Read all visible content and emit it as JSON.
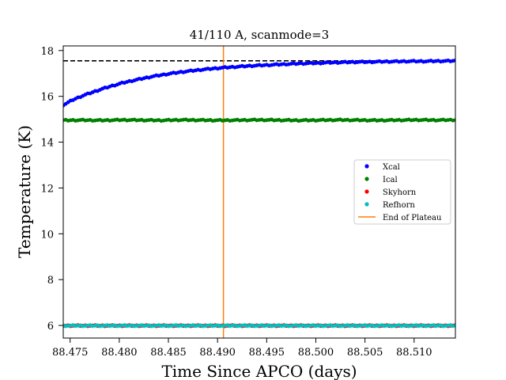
{
  "chart_data": {
    "type": "scatter",
    "title": "41/110 A, scanmode=3",
    "xlabel": "Time Since APCO (days)",
    "ylabel": "Temperature (K)",
    "xlim": [
      88.4743,
      88.5142
    ],
    "ylim": [
      5.45,
      18.2
    ],
    "x_ticks": [
      88.475,
      88.48,
      88.485,
      88.49,
      88.495,
      88.5,
      88.505,
      88.51
    ],
    "x_tick_labels": [
      "88.475",
      "88.480",
      "88.485",
      "88.490",
      "88.495",
      "88.500",
      "88.505",
      "88.510"
    ],
    "y_ticks": [
      6,
      8,
      10,
      12,
      14,
      16,
      18
    ],
    "y_tick_labels": [
      "6",
      "8",
      "10",
      "12",
      "14",
      "16",
      "18"
    ],
    "grid": false,
    "legend_position": "center-right",
    "series": [
      {
        "name": "Xcal",
        "color": "#0000ff",
        "marker": "dot",
        "x": [
          88.4743,
          88.4753,
          88.4763,
          88.4773,
          88.4783,
          88.4793,
          88.4803,
          88.4813,
          88.4823,
          88.4833,
          88.4843,
          88.4853,
          88.4863,
          88.4873,
          88.4883,
          88.4893,
          88.4903,
          88.4913,
          88.4923,
          88.4933,
          88.4943,
          88.4953,
          88.4963,
          88.4973,
          88.4983,
          88.4993,
          88.5003,
          88.5013,
          88.5023,
          88.5033,
          88.5043,
          88.5053,
          88.5063,
          88.5073,
          88.5083,
          88.5093,
          88.5103,
          88.5113,
          88.5123,
          88.5133,
          88.5142
        ],
        "y": [
          15.62,
          15.85,
          16.03,
          16.18,
          16.33,
          16.46,
          16.58,
          16.68,
          16.77,
          16.86,
          16.93,
          17.0,
          17.06,
          17.11,
          17.16,
          17.2,
          17.24,
          17.27,
          17.3,
          17.33,
          17.35,
          17.37,
          17.39,
          17.41,
          17.43,
          17.44,
          17.45,
          17.47,
          17.48,
          17.49,
          17.5,
          17.5,
          17.51,
          17.52,
          17.52,
          17.53,
          17.53,
          17.53,
          17.54,
          17.54,
          17.55
        ]
      },
      {
        "name": "Ical",
        "color": "#008000",
        "marker": "dot",
        "x": [
          88.4743,
          88.4763,
          88.4783,
          88.4803,
          88.4823,
          88.4843,
          88.4863,
          88.4883,
          88.4903,
          88.4923,
          88.4943,
          88.4963,
          88.4983,
          88.5003,
          88.5023,
          88.5043,
          88.5063,
          88.5083,
          88.5103,
          88.5123,
          88.5142
        ],
        "y": [
          14.95,
          14.96,
          14.95,
          14.97,
          14.96,
          14.95,
          14.97,
          14.96,
          14.95,
          14.96,
          14.97,
          14.96,
          14.95,
          14.96,
          14.97,
          14.96,
          14.95,
          14.96,
          14.97,
          14.96,
          14.97
        ]
      },
      {
        "name": "Skyhorn",
        "color": "#ff0000",
        "marker": "dot",
        "x": [
          88.4743,
          88.4763,
          88.4783,
          88.4803,
          88.4823,
          88.4843,
          88.4863,
          88.4883,
          88.4903,
          88.4923,
          88.4943,
          88.4963,
          88.4983,
          88.5003,
          88.5023,
          88.5043,
          88.5063,
          88.5083,
          88.5103,
          88.5123,
          88.5142
        ],
        "y": [
          5.99,
          5.99,
          5.99,
          5.99,
          5.99,
          5.99,
          5.99,
          5.99,
          5.99,
          5.99,
          5.99,
          5.99,
          5.99,
          5.99,
          5.99,
          5.99,
          5.99,
          5.99,
          5.99,
          5.99,
          5.99
        ]
      },
      {
        "name": "Refhorn",
        "color": "#00bfbf",
        "marker": "dot",
        "x": [
          88.4743,
          88.4763,
          88.4783,
          88.4803,
          88.4823,
          88.4843,
          88.4863,
          88.4883,
          88.4903,
          88.4923,
          88.4943,
          88.4963,
          88.4983,
          88.5003,
          88.5023,
          88.5043,
          88.5063,
          88.5083,
          88.5103,
          88.5123,
          88.5142
        ],
        "y": [
          5.99,
          5.99,
          5.99,
          5.99,
          5.99,
          5.99,
          5.99,
          5.99,
          5.99,
          5.99,
          5.99,
          5.99,
          5.99,
          5.99,
          5.99,
          5.99,
          5.99,
          5.99,
          5.99,
          5.99,
          5.99
        ]
      }
    ],
    "reference_lines": [
      {
        "orientation": "horizontal",
        "value": 17.55,
        "style": "dashed",
        "color": "#000000"
      },
      {
        "orientation": "vertical",
        "value": 88.4906,
        "name": "End of Plateau",
        "color": "#ff7f0e"
      }
    ]
  }
}
